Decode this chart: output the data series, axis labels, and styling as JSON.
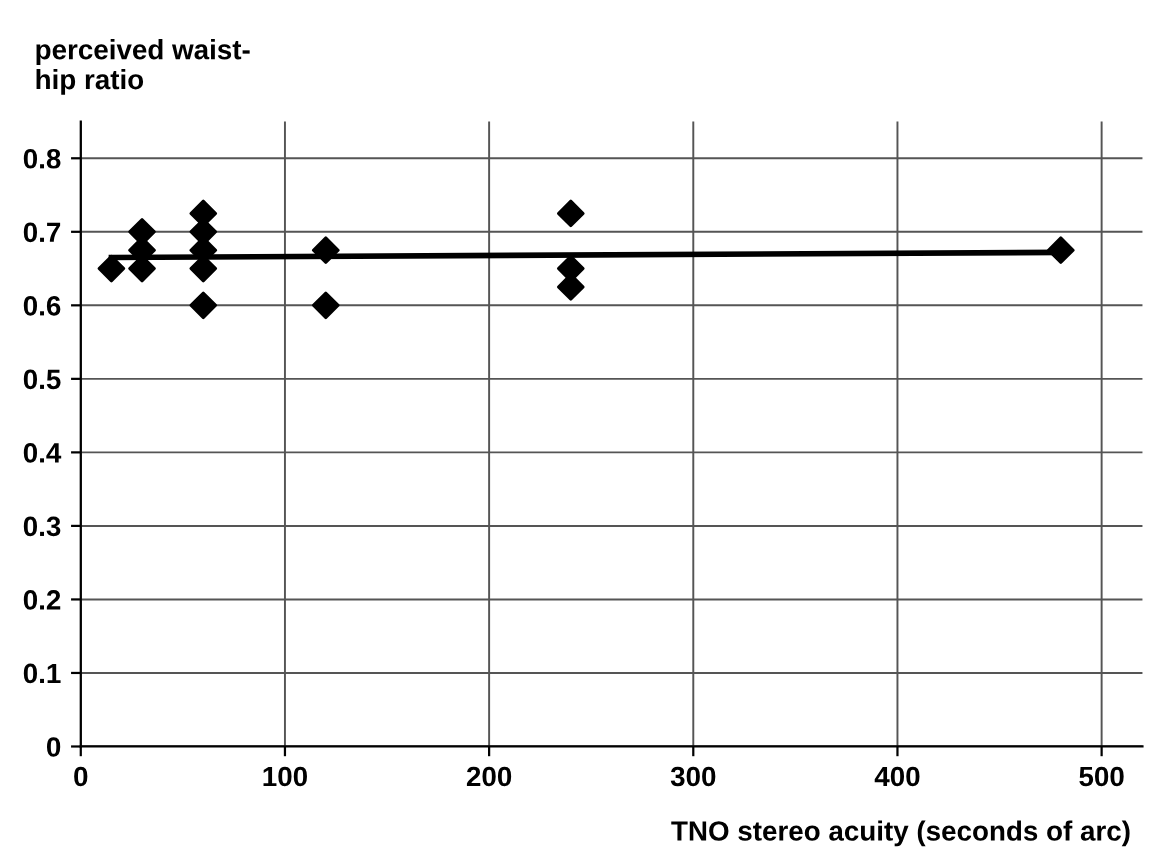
{
  "chart_data": {
    "type": "scatter",
    "ylabel": "perceived waist-\nhip ratio",
    "xlabel": "TNO stereo acuity (seconds of arc)",
    "series": [
      {
        "color": "#000000",
        "marker": "diamond",
        "x": [
          15,
          30,
          30,
          30,
          60,
          60,
          60,
          60,
          60,
          120,
          120,
          240,
          240,
          240,
          480
        ],
        "values": [
          0.65,
          0.7,
          0.675,
          0.65,
          0.725,
          0.7,
          0.675,
          0.65,
          0.6,
          0.675,
          0.6,
          0.725,
          0.65,
          0.625,
          0.675
        ]
      },
      {
        "type": "line",
        "color": "#000000",
        "marker": "none",
        "x": [
          15,
          480
        ],
        "values": [
          0.665,
          0.672
        ]
      }
    ],
    "xlim": [
      0,
      520
    ],
    "xticks": [
      0,
      100,
      200,
      300,
      400,
      500
    ],
    "ylim": [
      0,
      0.85
    ],
    "yticks": [
      0,
      0.1,
      0.2,
      0.3,
      0.4,
      0.5,
      0.6,
      0.7,
      0.8
    ],
    "grid": true
  }
}
